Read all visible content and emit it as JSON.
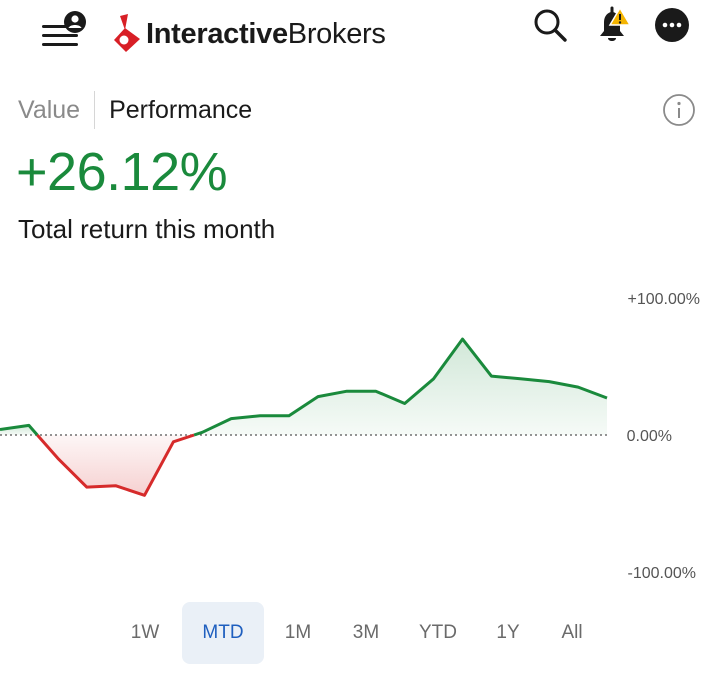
{
  "header": {
    "logo_text_bold": "Interactive",
    "logo_text_regular": "Brokers",
    "brand_color": "#d81f26",
    "icons": [
      "menu-icon",
      "user-badge-icon",
      "search-icon",
      "bell-icon",
      "warning-icon",
      "more-icon"
    ]
  },
  "tabs": {
    "value_label": "Value",
    "performance_label": "Performance",
    "active": "Performance"
  },
  "summary": {
    "return_value": "+26.12%",
    "caption": "Total return this month",
    "positive_color": "#1a8a3c",
    "negative_color": "#d62b2b"
  },
  "chart_data": {
    "type": "line",
    "y_tick_labels": [
      "+100.00%",
      "0.00%",
      "-100.00%"
    ],
    "ylim": [
      -100,
      100
    ],
    "baseline": 0,
    "grid": false,
    "series": [
      {
        "values": [
          4,
          7,
          -17,
          -38,
          -37,
          -44,
          -5,
          2,
          12,
          14,
          14,
          28,
          32,
          32,
          23,
          41,
          70,
          43,
          41,
          39,
          35,
          27
        ]
      }
    ]
  },
  "ranges": {
    "items": [
      "1W",
      "MTD",
      "1M",
      "3M",
      "YTD",
      "1Y",
      "All"
    ],
    "selected": "MTD"
  }
}
